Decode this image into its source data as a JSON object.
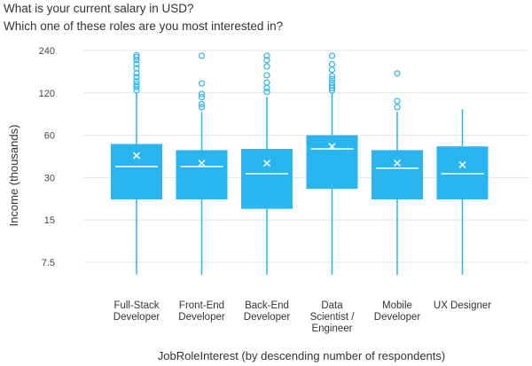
{
  "header": {
    "question": "What is your current salary in USD?",
    "subquestion": "Which one of these roles are you most interested in?"
  },
  "chart_data": {
    "type": "boxplot",
    "ylabel": "Income (thousands)",
    "xlabel": "JobRoleInterest (by descending number of respondents)",
    "yscale": "log",
    "yticks": [
      7.5,
      15,
      30,
      60,
      120,
      240
    ],
    "ytick_labels": [
      "7.5",
      "15",
      "30",
      "60",
      "120",
      "240"
    ],
    "ylim": [
      5.3,
      270
    ],
    "color": "#29b6f0",
    "gridColor": "#e6e6e6",
    "categories": [
      {
        "label_lines": [
          "Full-Stack",
          "Developer"
        ],
        "min": 5.3,
        "q1": 21,
        "median": 36,
        "q3": 52,
        "max": 120,
        "mean": 43,
        "outliers": [
          125,
          132,
          138,
          145,
          155,
          165,
          180,
          192,
          205,
          215,
          222
        ]
      },
      {
        "label_lines": [
          "Front-End",
          "Developer"
        ],
        "min": 5.3,
        "q1": 21,
        "median": 36,
        "q3": 47,
        "max": 88,
        "mean": 38,
        "outliers": [
          95,
          100,
          112,
          118,
          140,
          220
        ]
      },
      {
        "label_lines": [
          "Back-End",
          "Developer"
        ],
        "min": 5.3,
        "q1": 18,
        "median": 32,
        "q3": 48,
        "max": 112,
        "mean": 38,
        "outliers": [
          122,
          130,
          142,
          160,
          185,
          205,
          220
        ]
      },
      {
        "label_lines": [
          "Data",
          "Scientist /",
          "Engineer"
        ],
        "min": 5.3,
        "q1": 25,
        "median": 48,
        "q3": 60,
        "max": 120,
        "mean": 50,
        "outliers": [
          125,
          130,
          135,
          142,
          150,
          158,
          175,
          192,
          220
        ]
      },
      {
        "label_lines": [
          "Mobile",
          "Developer"
        ],
        "min": 5.3,
        "q1": 21,
        "median": 35,
        "q3": 47,
        "max": 88,
        "mean": 38,
        "outliers": [
          95,
          105,
          165
        ]
      },
      {
        "label_lines": [
          "UX Designer"
        ],
        "min": 5.3,
        "q1": 21,
        "median": 32,
        "q3": 50,
        "max": 92,
        "mean": 37,
        "outliers": []
      }
    ]
  }
}
